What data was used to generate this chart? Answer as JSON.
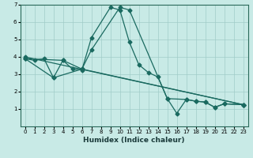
{
  "xlabel": "Humidex (Indice chaleur)",
  "background_color": "#c8eae6",
  "grid_color": "#a0ccc8",
  "line_color": "#1a6a60",
  "xlim": [
    -0.5,
    23.5
  ],
  "ylim": [
    0,
    7
  ],
  "xticks": [
    0,
    1,
    2,
    3,
    4,
    5,
    6,
    7,
    8,
    9,
    10,
    11,
    12,
    13,
    14,
    15,
    16,
    17,
    18,
    19,
    20,
    21,
    22,
    23
  ],
  "yticks": [
    1,
    2,
    3,
    4,
    5,
    6,
    7
  ],
  "line1_x": [
    0,
    1,
    2,
    3,
    4,
    5,
    6,
    7,
    9,
    10,
    11,
    12,
    13,
    14,
    15,
    16,
    17,
    18,
    19,
    20,
    21,
    23
  ],
  "line1_y": [
    3.9,
    3.8,
    3.9,
    2.8,
    3.8,
    3.3,
    3.25,
    5.1,
    6.85,
    6.7,
    4.85,
    3.55,
    3.1,
    2.85,
    1.6,
    0.75,
    1.55,
    1.45,
    1.4,
    1.1,
    1.3,
    1.25
  ],
  "line2_x": [
    0,
    4,
    6,
    7,
    10,
    11,
    15,
    17,
    18,
    19,
    20,
    21,
    23
  ],
  "line2_y": [
    3.9,
    3.8,
    3.3,
    4.4,
    6.85,
    6.7,
    1.6,
    1.55,
    1.45,
    1.4,
    1.1,
    1.3,
    1.25
  ],
  "line3_x": [
    0,
    23
  ],
  "line3_y": [
    4.0,
    1.25
  ],
  "line4_x": [
    0,
    3,
    6,
    23
  ],
  "line4_y": [
    3.9,
    2.8,
    3.3,
    1.25
  ]
}
